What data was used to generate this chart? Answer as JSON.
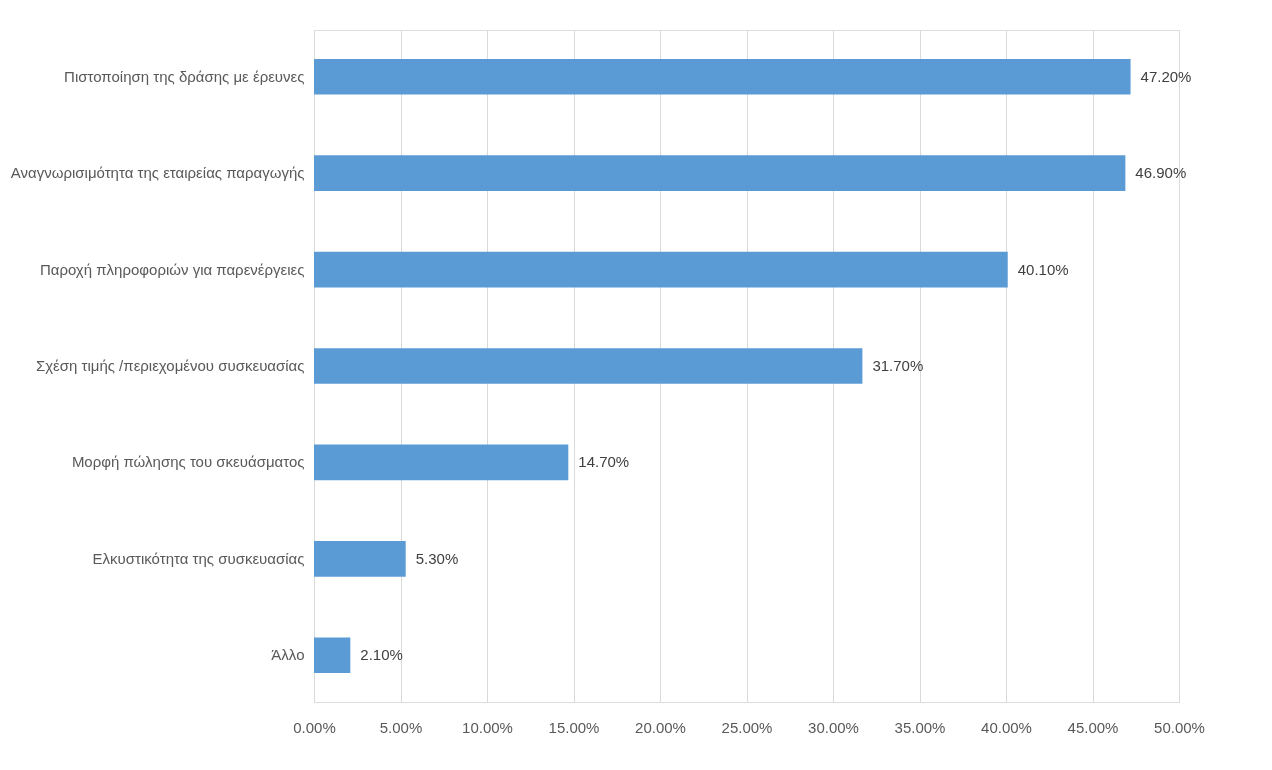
{
  "chart_data": {
    "type": "bar",
    "orientation": "horizontal",
    "categories": [
      "Πιστοποίηση της δράσης με έρευνες",
      "Αναγνωρισιμότητα της εταιρείας παραγωγής",
      "Παροχή πληροφοριών για παρενέργειες",
      "Σχέση τιμής /περιεχομένου συσκευασίας",
      "Μορφή πώλησης του σκευάσματος",
      "Ελκυστικότητα της συσκευασίας",
      "Άλλο"
    ],
    "values": [
      47.2,
      46.9,
      40.1,
      31.7,
      14.7,
      5.3,
      2.1
    ],
    "value_labels": [
      "47.20%",
      "46.90%",
      "40.10%",
      "31.70%",
      "14.70%",
      "5.30%",
      "2.10%"
    ],
    "color": "#5b9bd5",
    "xlim": [
      0,
      50
    ],
    "xticks": [
      {
        "value": 0,
        "label": "0.00%"
      },
      {
        "value": 5,
        "label": "5.00%"
      },
      {
        "value": 10,
        "label": "10.00%"
      },
      {
        "value": 15,
        "label": "15.00%"
      },
      {
        "value": 20,
        "label": "20.00%"
      },
      {
        "value": 25,
        "label": "25.00%"
      },
      {
        "value": 30,
        "label": "30.00%"
      },
      {
        "value": 35,
        "label": "35.00%"
      },
      {
        "value": 40,
        "label": "40.00%"
      },
      {
        "value": 45,
        "label": "45.00%"
      },
      {
        "value": 50,
        "label": "50.00%"
      }
    ],
    "grid": "x"
  }
}
